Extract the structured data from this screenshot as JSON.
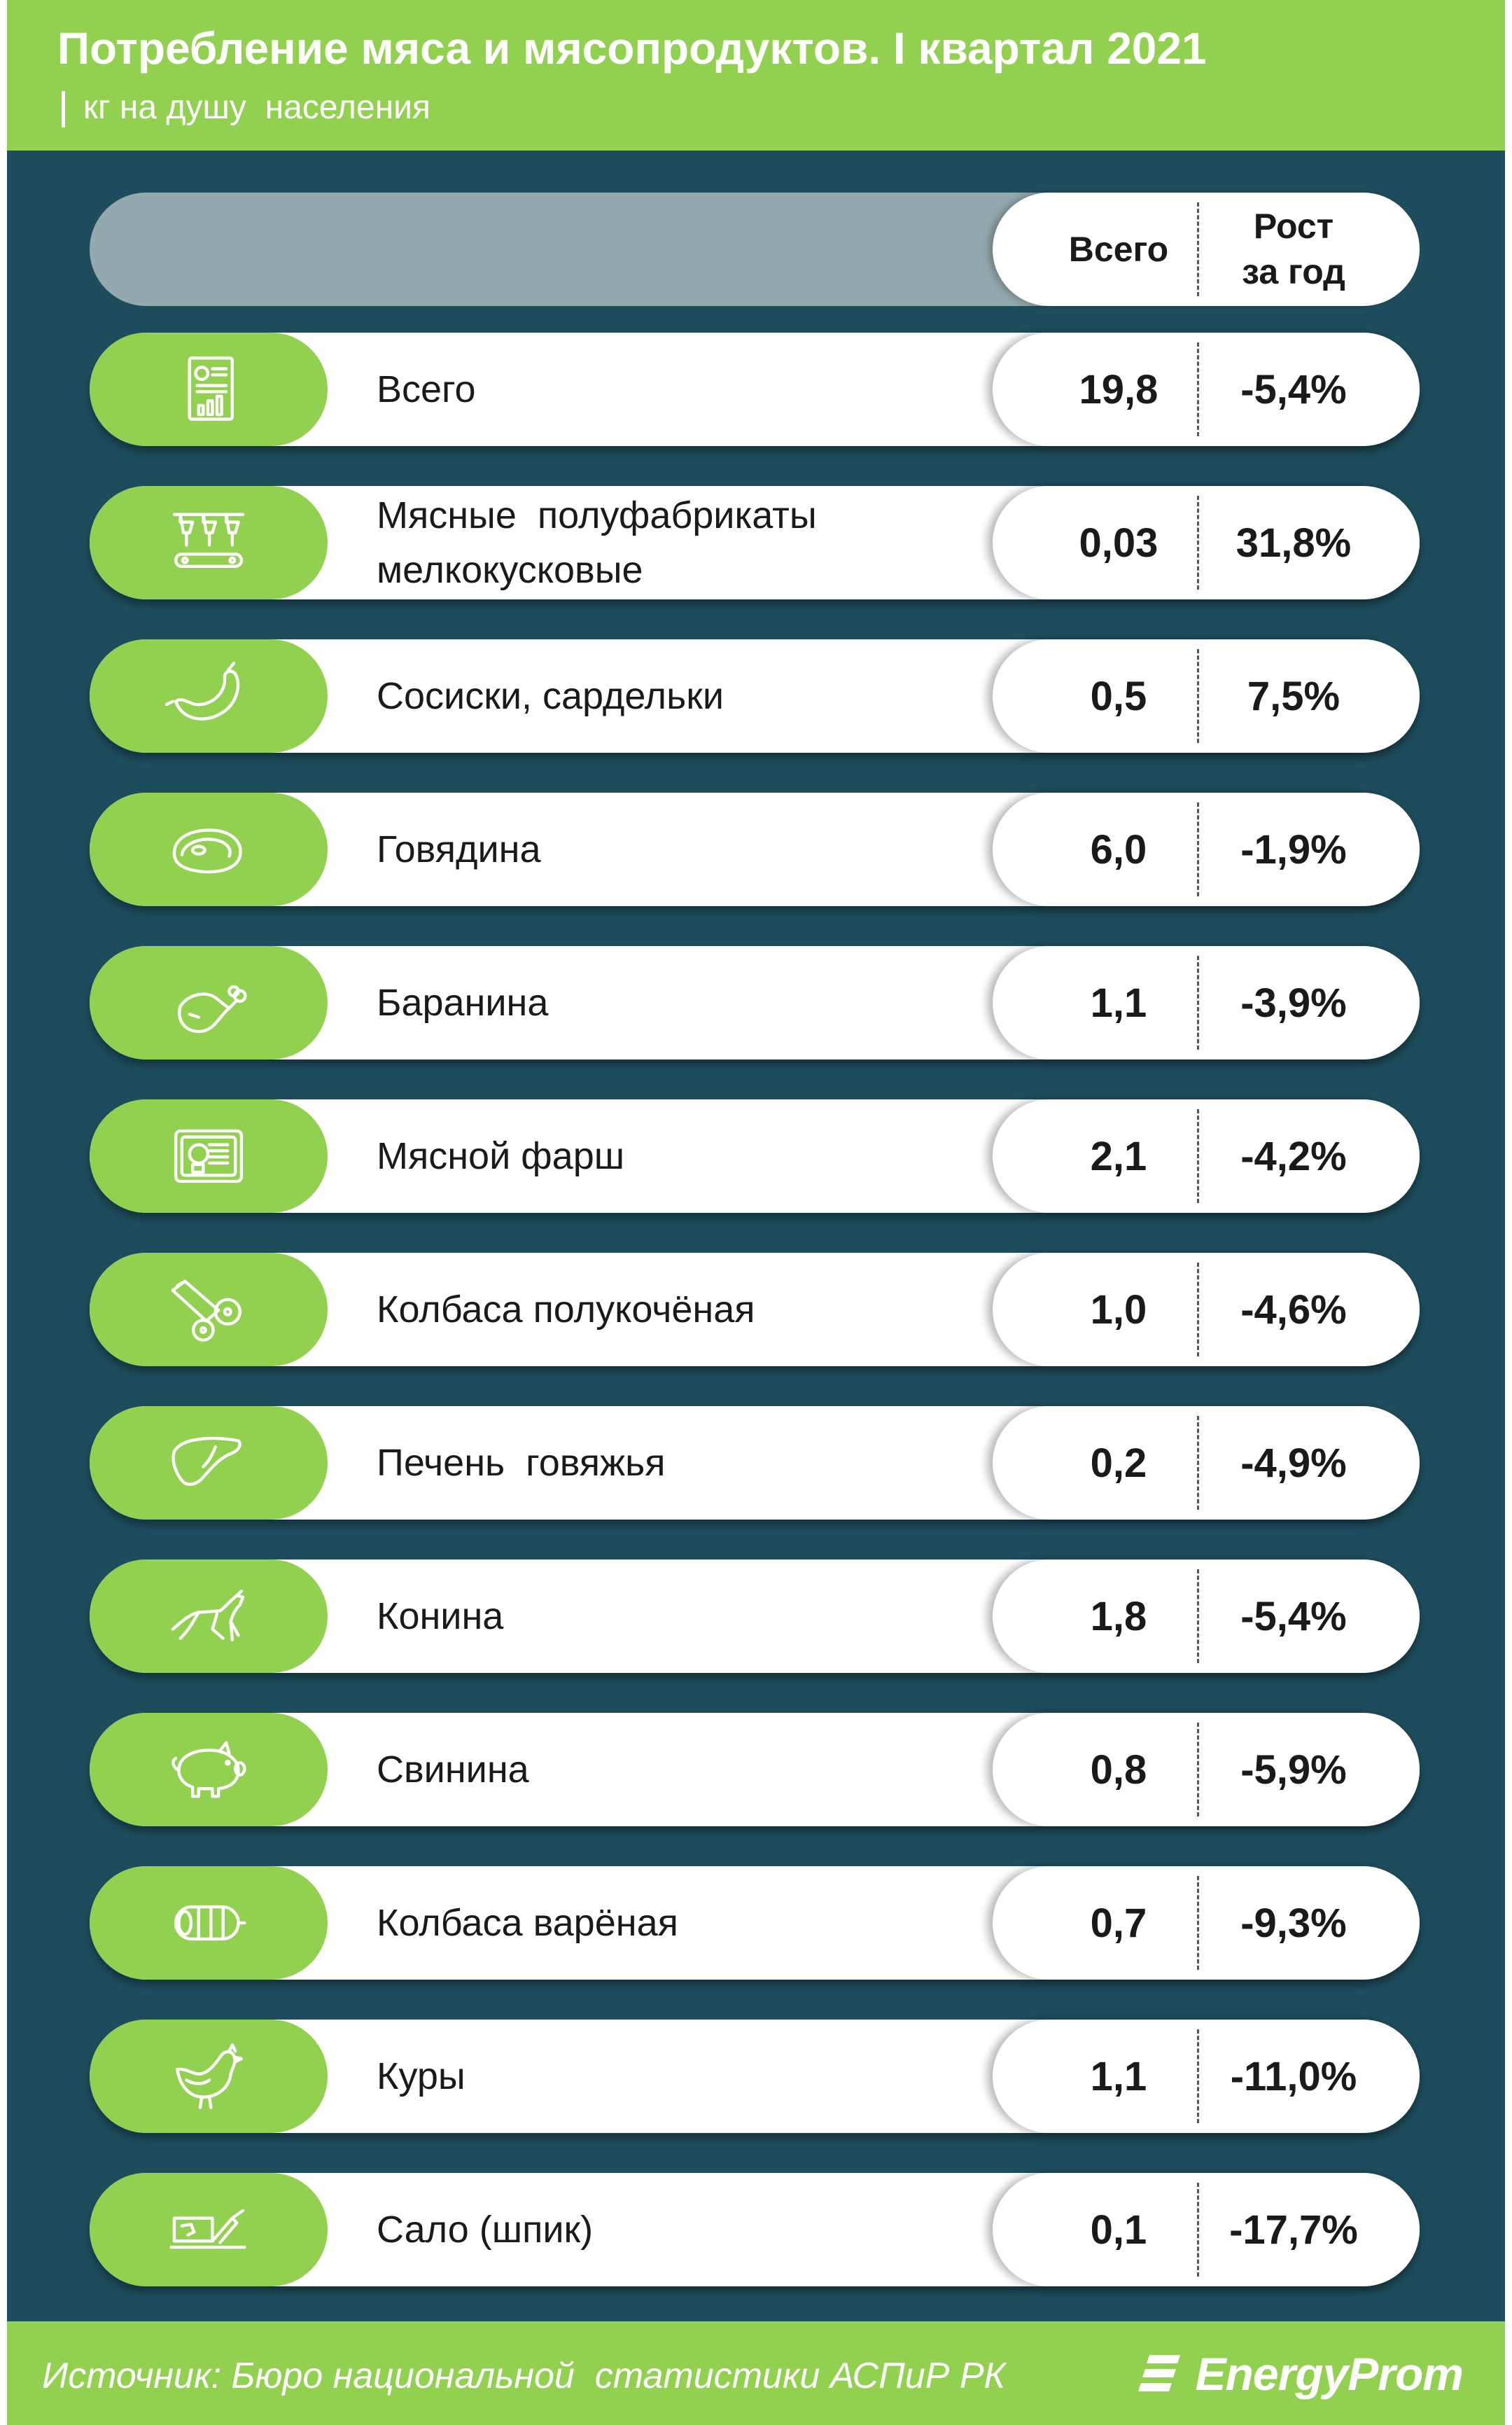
{
  "header": {
    "title": "Потребление мяса и мясопродуктов. I квартал 2021",
    "subtitle": "кг на душу  населения"
  },
  "table": {
    "col_total": "Всего",
    "col_growth": "Рост\nза год"
  },
  "chart_data": {
    "type": "table",
    "title": "Потребление мяса и мясопродуктов. I квартал 2021",
    "unit": "кг на душу  населения",
    "columns": [
      "Всего",
      "Рост за год"
    ],
    "rows": [
      {
        "icon": "report-icon",
        "label": "Всего",
        "total": "19,8",
        "growth": "-5,4%"
      },
      {
        "icon": "production-line-icon",
        "label": "Мясные  полуфабрикаты\nмелкокусковые",
        "total": "0,03",
        "growth": "31,8%"
      },
      {
        "icon": "sausage-icon",
        "label": "Сосиски, сардельки",
        "total": "0,5",
        "growth": "7,5%"
      },
      {
        "icon": "steak-icon",
        "label": "Говядина",
        "total": "6,0",
        "growth": "-1,9%"
      },
      {
        "icon": "lamb-leg-icon",
        "label": "Баранина",
        "total": "1,1",
        "growth": "-3,9%"
      },
      {
        "icon": "mince-tray-icon",
        "label": "Мясной фарш",
        "total": "2,1",
        "growth": "-4,2%"
      },
      {
        "icon": "salami-icon",
        "label": "Колбаса полукочёная",
        "total": "1,0",
        "growth": "-4,6%"
      },
      {
        "icon": "liver-icon",
        "label": "Печень  говяжья",
        "total": "0,2",
        "growth": "-4,9%"
      },
      {
        "icon": "horse-icon",
        "label": "Конина",
        "total": "1,8",
        "growth": "-5,4%"
      },
      {
        "icon": "pig-icon",
        "label": "Свинина",
        "total": "0,8",
        "growth": "-5,9%"
      },
      {
        "icon": "boiled-sausage-icon",
        "label": "Колбаса варёная",
        "total": "0,7",
        "growth": "-9,3%"
      },
      {
        "icon": "chicken-icon",
        "label": "Куры",
        "total": "1,1",
        "growth": "-11,0%"
      },
      {
        "icon": "lard-icon",
        "label": "Сало (шпик)",
        "total": "0,1",
        "growth": "-17,7%"
      }
    ]
  },
  "footer": {
    "source": "Источник: Бюро национальной  статистики АСПиР РК",
    "brand": "EnergyProm"
  },
  "colors": {
    "accent_green": "#92d050",
    "panel_teal": "#1e4e5e",
    "header_gray": "#94a9ad"
  }
}
